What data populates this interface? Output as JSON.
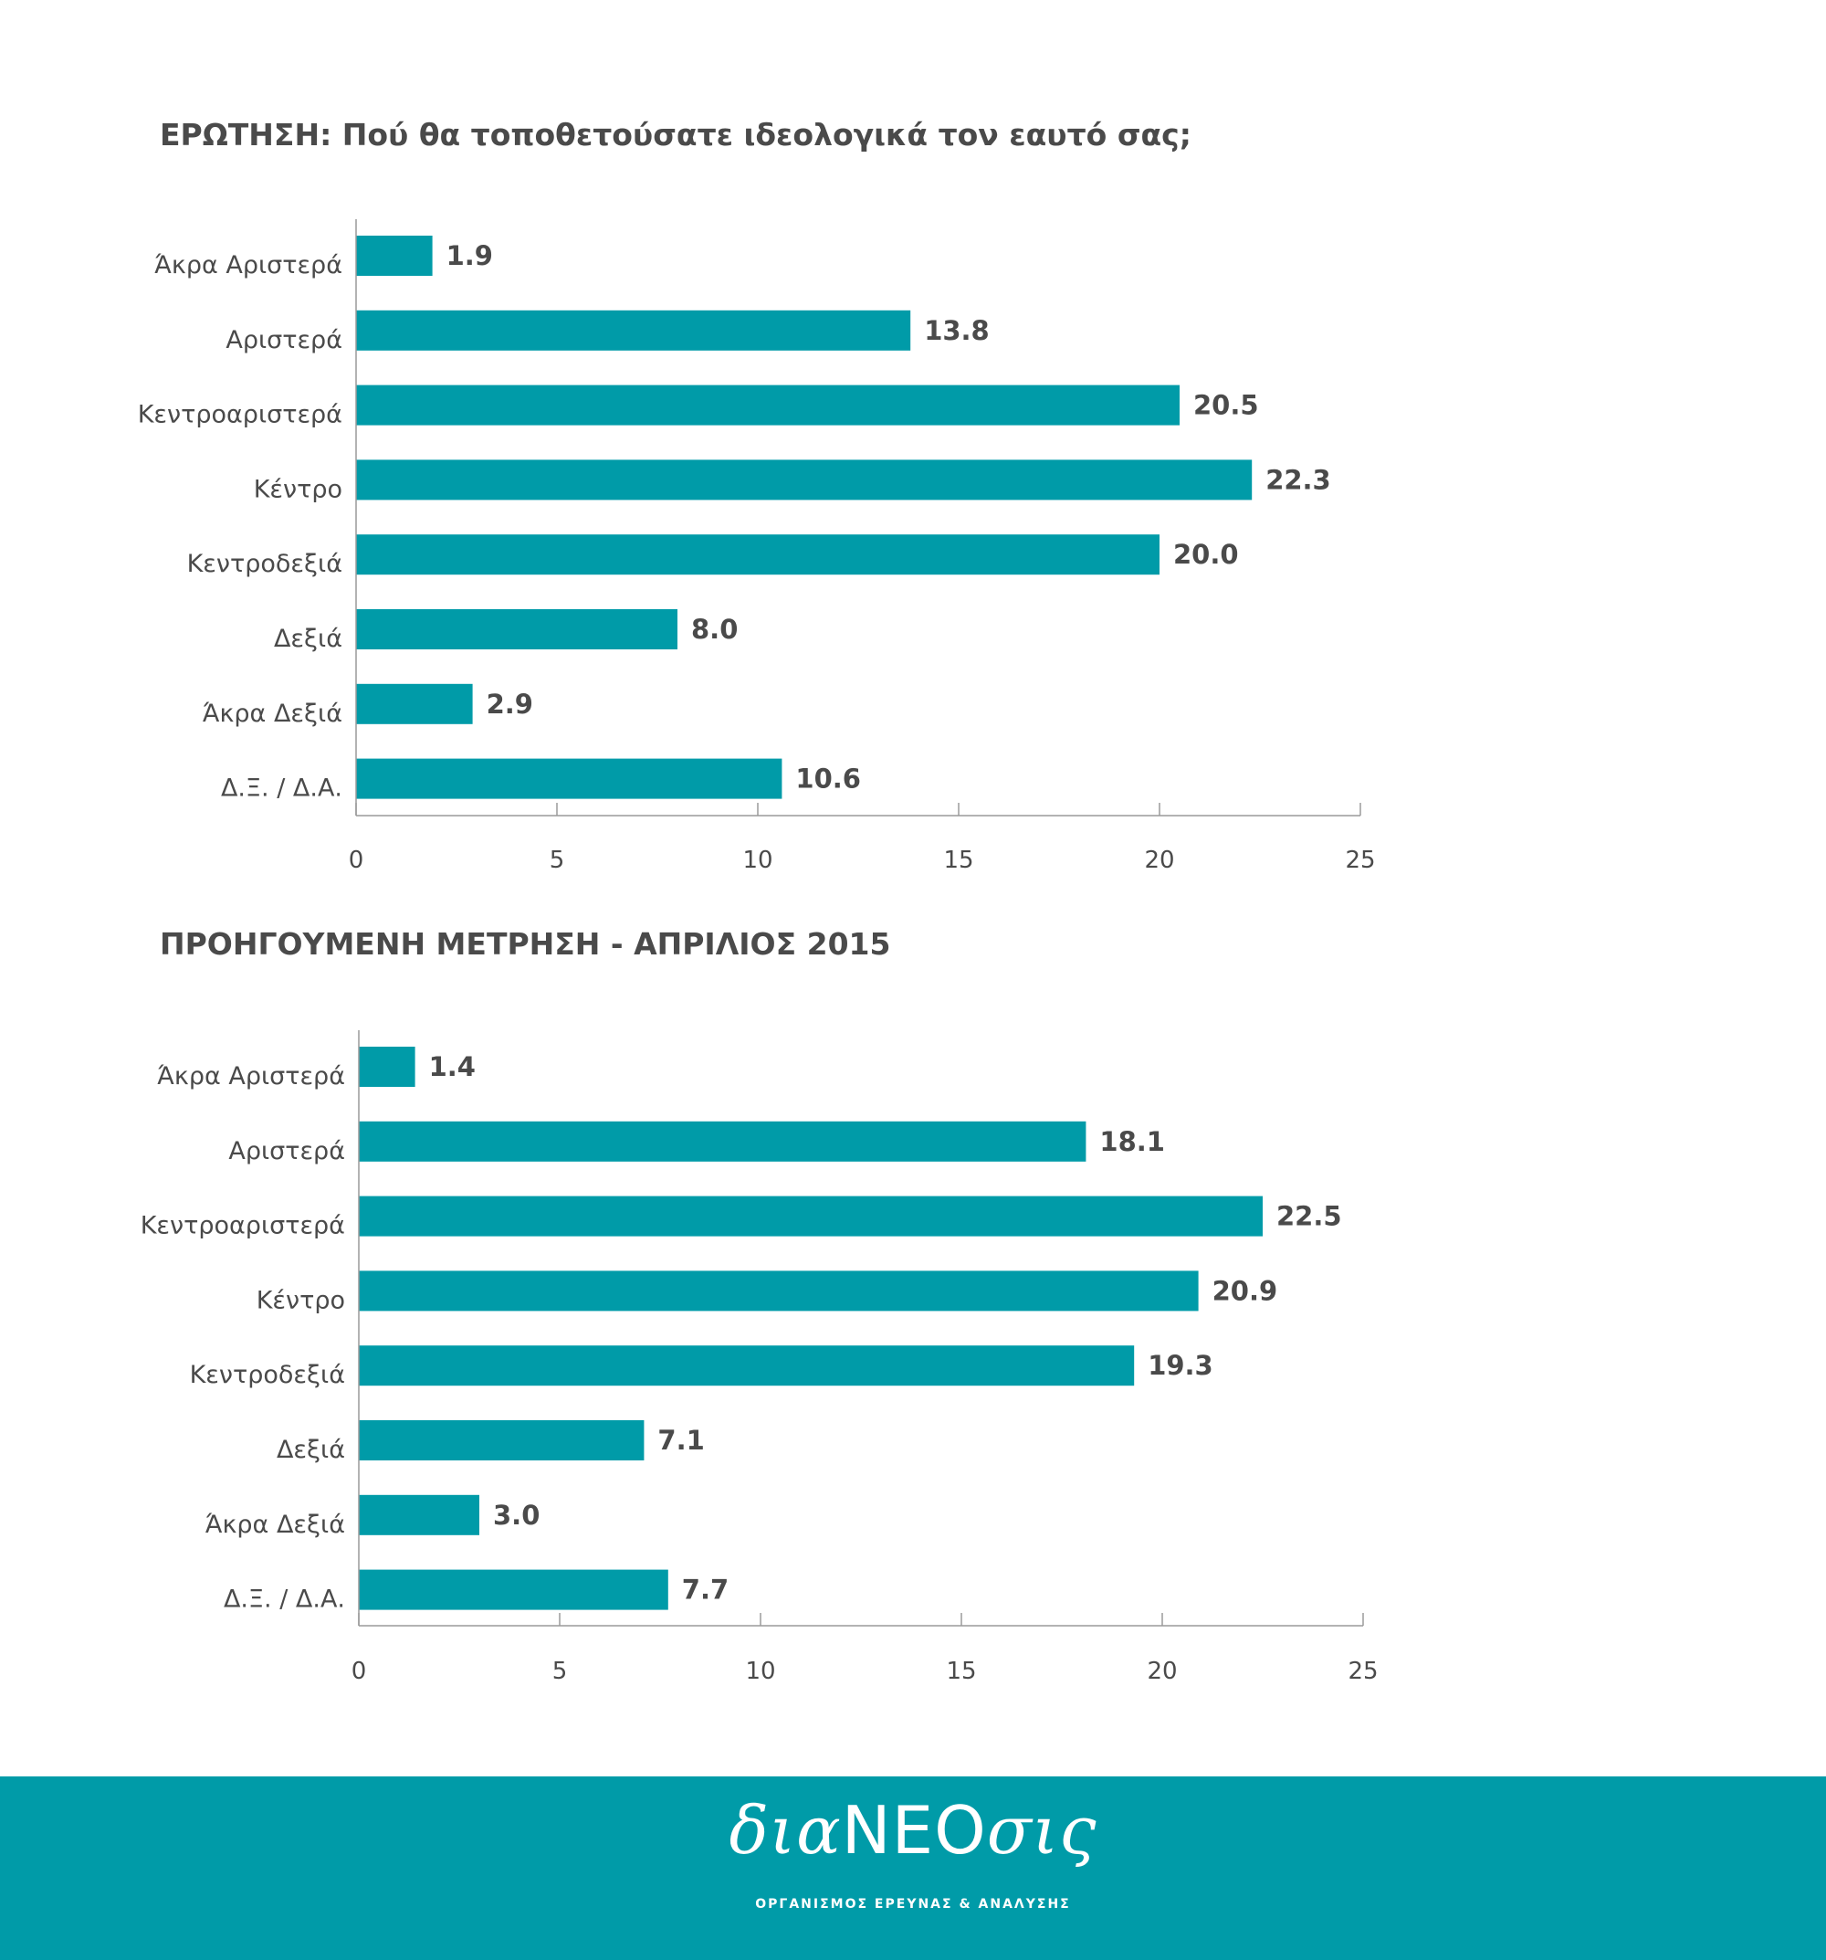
{
  "chart_data": [
    {
      "type": "bar",
      "orientation": "horizontal",
      "title": "ΕΡΩΤΗΣΗ: Πού θα τοποθετούσατε ιδεολογικά τον εαυτό σας;",
      "categories": [
        "Άκρα Αριστερά",
        "Αριστερά",
        "Κεντροαριστερά",
        "Κέντρο",
        "Κεντροδεξιά",
        "Δεξιά",
        "Άκρα Δεξιά",
        "Δ.Ξ. / Δ.Α."
      ],
      "values": [
        1.9,
        13.8,
        20.5,
        22.3,
        20.0,
        8.0,
        2.9,
        10.6
      ],
      "value_labels": [
        "1.9",
        "13.8",
        "20.5",
        "22.3",
        "20.0",
        "8.0",
        "2.9",
        "10.6"
      ],
      "xlim": [
        0,
        25
      ],
      "ticks": [
        "0",
        "5",
        "10",
        "15",
        "20",
        "25"
      ],
      "xlabel": "",
      "ylabel": "",
      "grid": false,
      "color": "#009ba8"
    },
    {
      "type": "bar",
      "orientation": "horizontal",
      "title": "ΠΡΟΗΓΟΥΜΕΝΗ ΜΕΤΡΗΣΗ - ΑΠΡΙΛΙΟΣ 2015",
      "categories": [
        "Άκρα Αριστερά",
        "Αριστερά",
        "Κεντροαριστερά",
        "Κέντρο",
        "Κεντροδεξιά",
        "Δεξιά",
        "Άκρα Δεξιά",
        "Δ.Ξ. / Δ.Α."
      ],
      "values": [
        1.4,
        18.1,
        22.5,
        20.9,
        19.3,
        7.1,
        3.0,
        7.7
      ],
      "value_labels": [
        "1.4",
        "18.1",
        "22.5",
        "20.9",
        "19.3",
        "7.1",
        "3.0",
        "7.7"
      ],
      "xlim": [
        0,
        25
      ],
      "ticks": [
        "0",
        "5",
        "10",
        "15",
        "20",
        "25"
      ],
      "xlabel": "",
      "ylabel": "",
      "grid": false,
      "color": "#009ba8"
    }
  ],
  "footer": {
    "logo_prefix": "δια",
    "logo_caps": "ΝΕΟ",
    "logo_suffix": "σις",
    "tagline": "ΟΡΓΑΝΙΣΜΟΣ ΕΡΕΥΝΑΣ & ΑΝΑΛΥΣΗΣ",
    "background_color": "#009ba8"
  }
}
